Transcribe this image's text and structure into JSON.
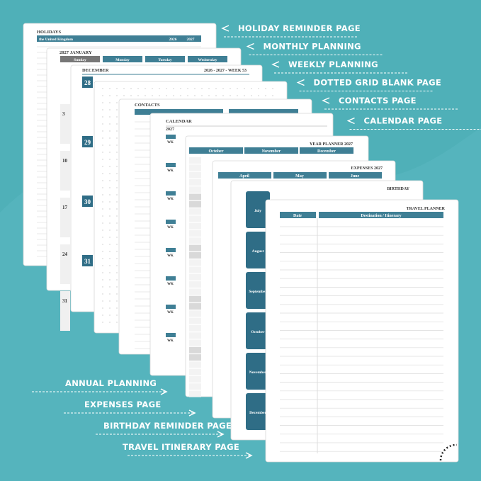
{
  "callouts_right": [
    "HOLIDAY REMINDER PAGE",
    "MONTHLY PLANNING",
    "WEEKLY PLANNING",
    "DOTTED GRID BLANK PAGE",
    "CONTACTS PAGE",
    "CALENDAR PAGE"
  ],
  "callouts_left": [
    "ANNUAL PLANNING",
    "EXPENSES PAGE",
    "BIRTHDAY REMINDER PAGE",
    "TRAVEL ITINERARY PAGE"
  ],
  "pages": {
    "holidays": {
      "title": "HOLIDAYS",
      "country": "the United Kingdom",
      "years": [
        "2026",
        "2027"
      ]
    },
    "monthly": {
      "title": "2027 JANUARY",
      "weekdays": [
        "Sunday",
        "Monday",
        "Tuesday",
        "Wednesday"
      ],
      "dates": [
        "3",
        "10",
        "17",
        "24",
        "31"
      ]
    },
    "weekly": {
      "month": "DECEMBER",
      "week": "2026 - 2027 - WEEK 53",
      "days": [
        "28",
        "29",
        "30",
        "31"
      ]
    },
    "contacts": {
      "title": "CONTACTS"
    },
    "calendar": {
      "title": "CALENDAR",
      "year": "2027",
      "week_label": "WK"
    },
    "year_planner": {
      "title": "YEAR PLANNER 2027",
      "months": [
        "October",
        "November",
        "December"
      ]
    },
    "expenses": {
      "title": "EXPENSES 2027",
      "months": [
        "April",
        "May",
        "June"
      ]
    },
    "birthday": {
      "title": "BIRTHDAY",
      "months": [
        "July",
        "August",
        "September",
        "October",
        "November",
        "December"
      ]
    },
    "travel": {
      "title": "TRAVEL PLANNER",
      "columns": [
        "Date",
        "Destination / Itinerary"
      ]
    }
  }
}
